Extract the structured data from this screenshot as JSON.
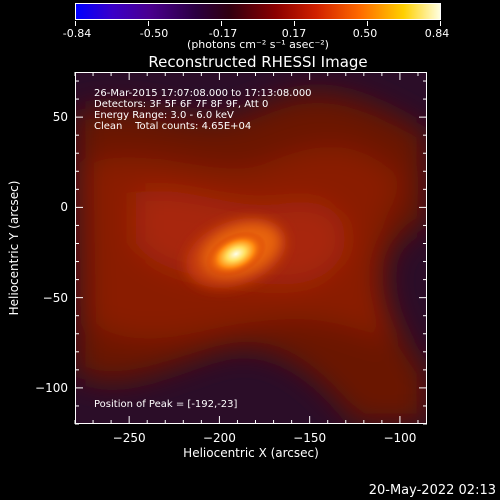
{
  "colorbar": {
    "ticks": [
      "-0.84",
      "-0.50",
      "-0.17",
      "0.17",
      "0.50",
      "0.84"
    ],
    "units": "(photons cm⁻² s⁻¹ asec⁻²)"
  },
  "title": "Reconstructed RHESSI Image",
  "annotations": {
    "line1": "26-Mar-2015 17:07:08.000 to 17:13:08.000",
    "line2": "Detectors: 3F 5F 6F 7F 8F 9F, Att 0",
    "line3": "Energy Range: 3.0 - 6.0 keV",
    "line4": "Clean    Total counts: 4.65E+04",
    "peak": "Position of Peak = [-192,-23]"
  },
  "timestamp": "20-May-2022 02:13",
  "chart_data": {
    "type": "heatmap",
    "title": "Reconstructed RHESSI Image",
    "xlabel": "Heliocentric X (arcsec)",
    "ylabel": "Heliocentric Y (arcsec)",
    "xlim": [
      -280,
      -85
    ],
    "ylim": [
      -120,
      75
    ],
    "xticks": [
      -250,
      -200,
      -150,
      -100
    ],
    "yticks": [
      50,
      0,
      -50,
      -100
    ],
    "colorbar_range": [
      -0.84,
      0.84
    ],
    "colormap": "red-temperature",
    "peak_position": [
      -192,
      -23
    ]
  }
}
